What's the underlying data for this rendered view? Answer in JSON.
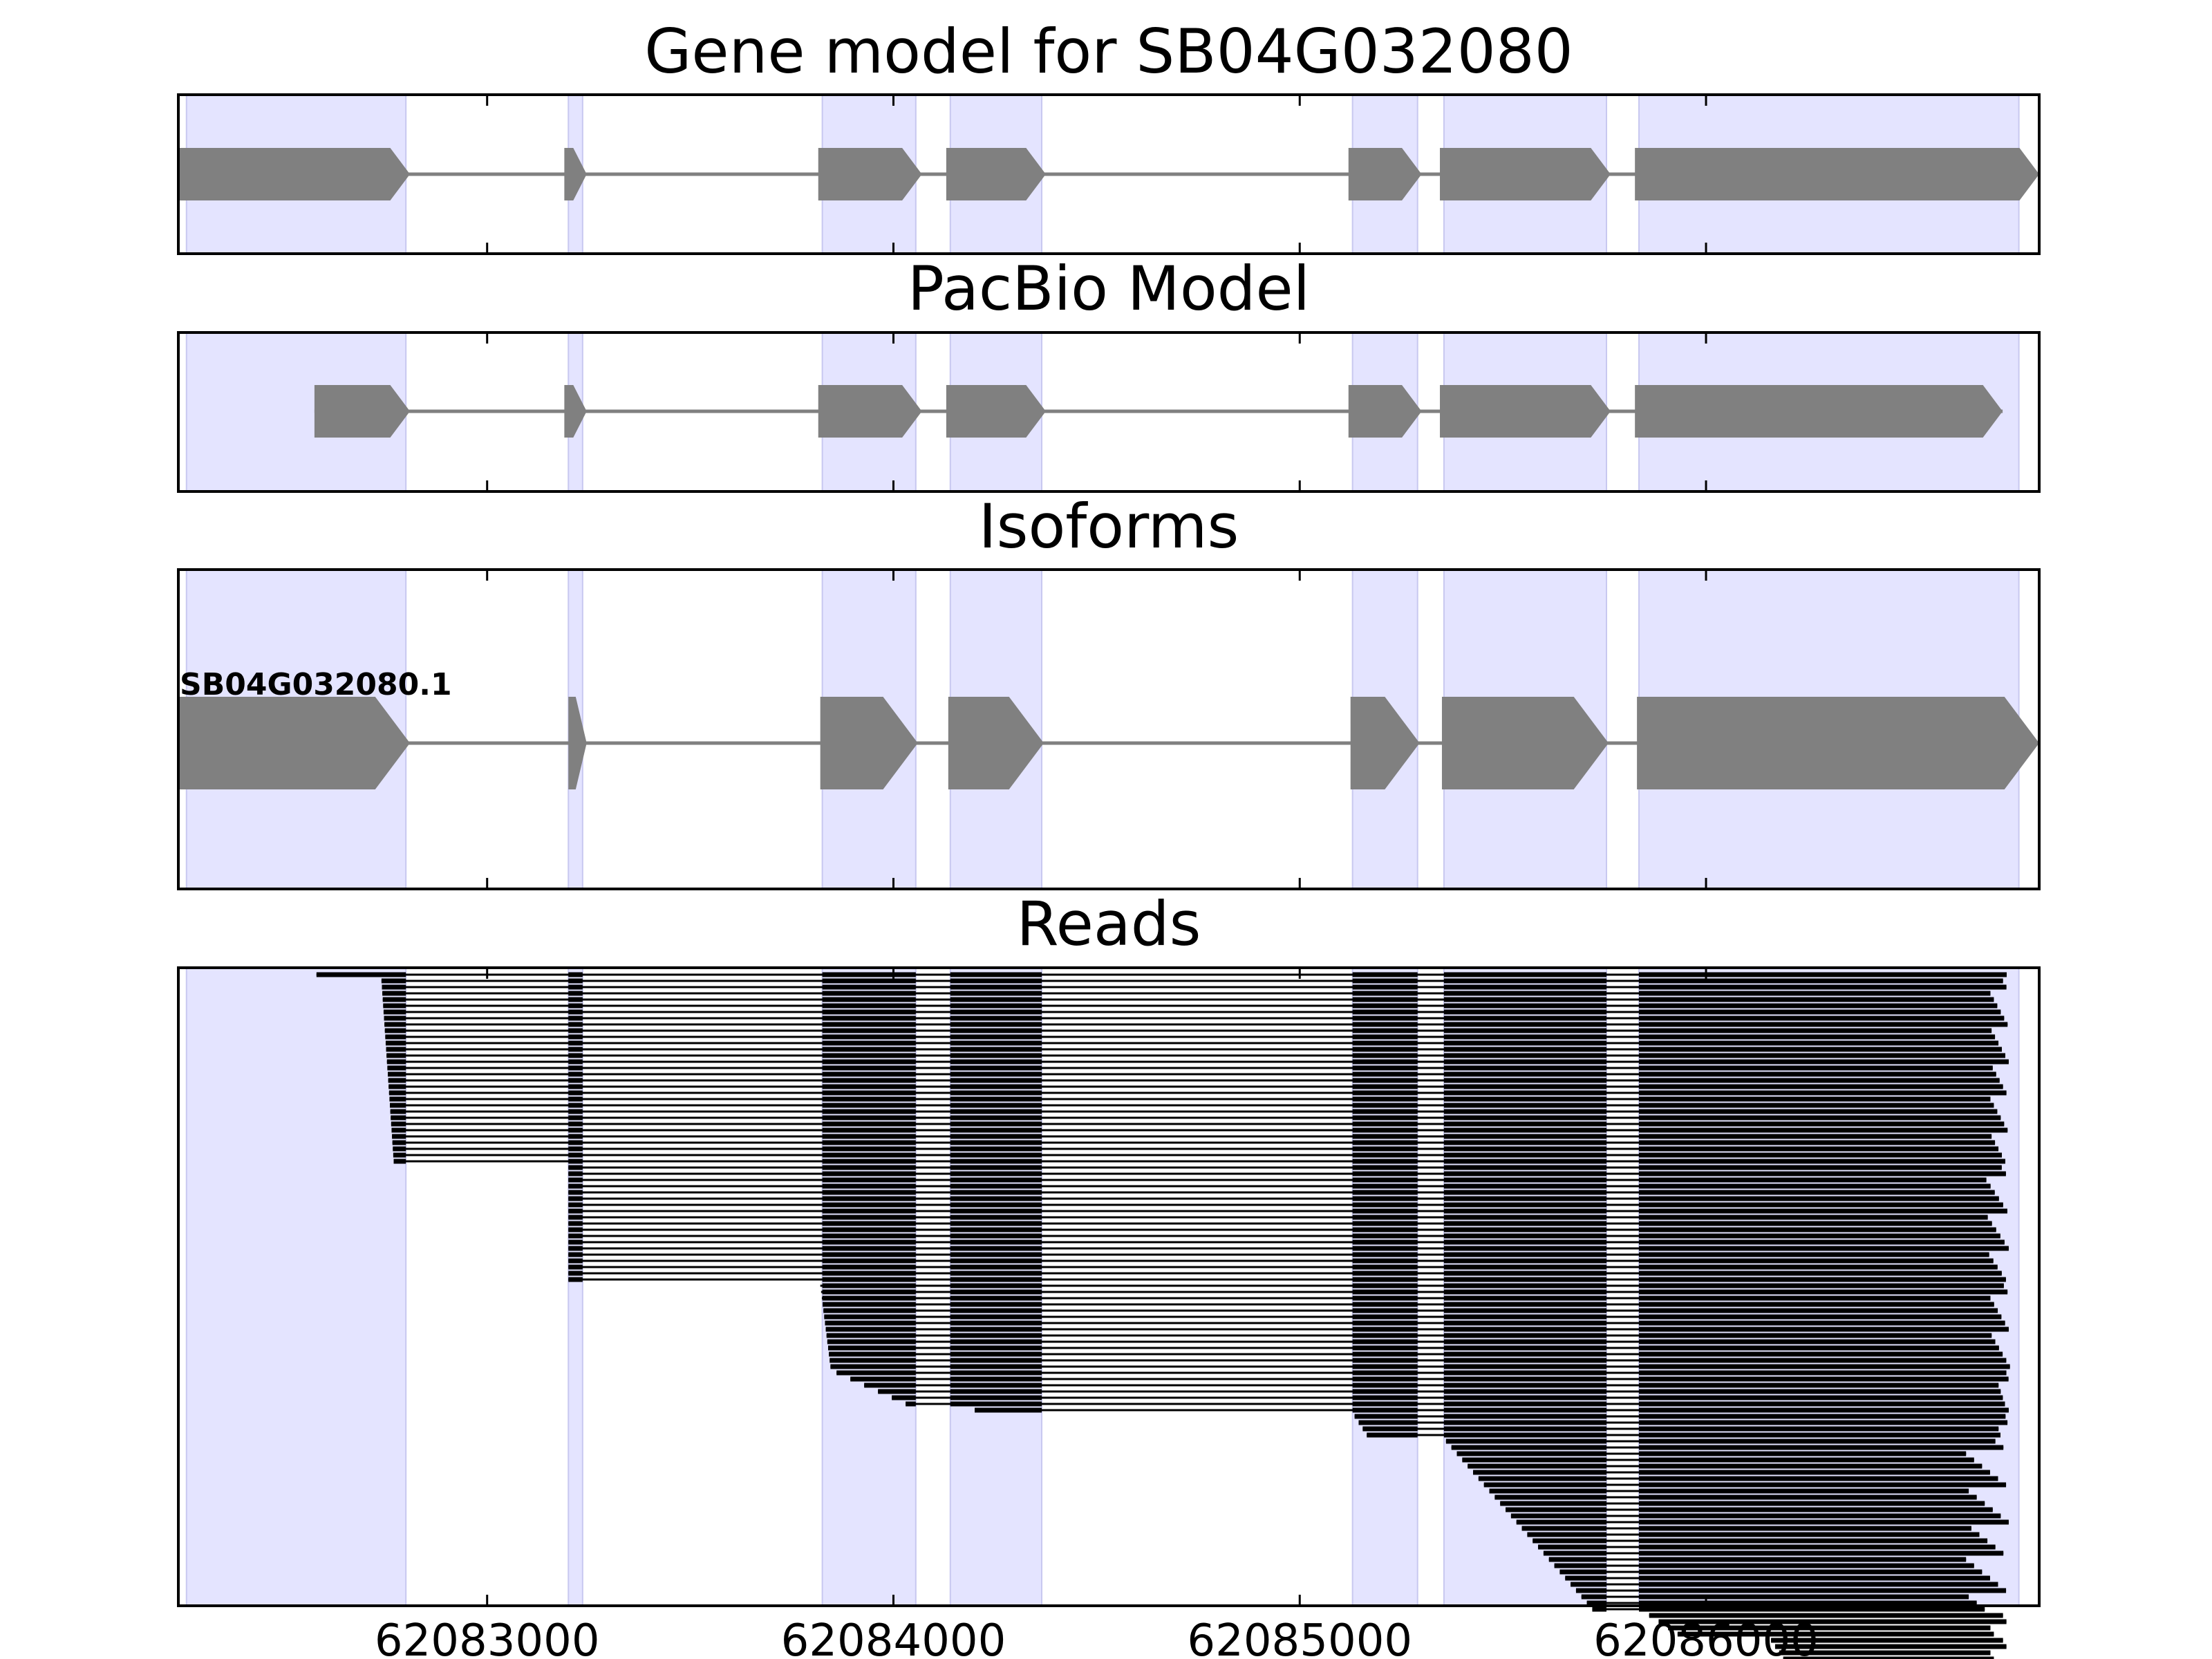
{
  "chart_data": {
    "type": "gene-track",
    "x_range": [
      62082240,
      62086820
    ],
    "x_ticks": [
      62083000,
      62084000,
      62085000,
      62086000
    ],
    "x_tick_labels": [
      "62083000",
      "62084000",
      "62085000",
      "62086000"
    ],
    "exon_regions": [
      [
        62082260,
        62082800
      ],
      [
        62083200,
        62083235
      ],
      [
        62083825,
        62084055
      ],
      [
        62084140,
        62084365
      ],
      [
        62085130,
        62085290
      ],
      [
        62085355,
        62085755
      ],
      [
        62085835,
        62086770
      ]
    ],
    "colors": {
      "highlight": "#e4e4ff",
      "feature": "#808080",
      "read": "#000000"
    },
    "panels": [
      {
        "title": "Gene model for SB04G032080",
        "tracks": [
          {
            "label": "",
            "exons": [
              [
                62082240,
                62082810
              ],
              [
                62083190,
                62083245
              ],
              [
                62083815,
                62084070
              ],
              [
                62084130,
                62084375
              ],
              [
                62085120,
                62085300
              ],
              [
                62085345,
                62085765
              ],
              [
                62085825,
                62086820
              ]
            ]
          }
        ]
      },
      {
        "title": "PacBio Model",
        "tracks": [
          {
            "label": "",
            "exons": [
              [
                62082575,
                62082810
              ],
              [
                62083190,
                62083245
              ],
              [
                62083815,
                62084070
              ],
              [
                62084130,
                62084375
              ],
              [
                62085120,
                62085300
              ],
              [
                62085345,
                62085765
              ],
              [
                62085825,
                62086730
              ]
            ]
          }
        ]
      },
      {
        "title": "Isoforms",
        "tracks": [
          {
            "label": "SB04G032080.1",
            "exons": [
              [
                62082240,
                62082810
              ],
              [
                62083200,
                62083245
              ],
              [
                62083820,
                62084060
              ],
              [
                62084135,
                62084370
              ],
              [
                62085125,
                62085295
              ],
              [
                62085350,
                62085760
              ],
              [
                62085830,
                62086820
              ]
            ]
          }
        ]
      }
    ],
    "reads_panel": {
      "title": "Reads",
      "read_groups": [
        {
          "count": 1,
          "start": 62082580,
          "end": 62086740
        },
        {
          "count": 30,
          "start_from": 62082740,
          "start_to": 62082770,
          "end_min": 62086700,
          "end_max": 62086745
        },
        {
          "count": 19,
          "start_from": 62083200,
          "start_to": 62083200,
          "end_min": 62086690,
          "end_max": 62086745
        },
        {
          "count": 14,
          "start_from": 62083820,
          "start_to": 62083845,
          "end_min": 62086700,
          "end_max": 62086748
        },
        {
          "count": 6,
          "start_from": 62083860,
          "start_to": 62084030,
          "end_min": 62086720,
          "end_max": 62086748
        },
        {
          "count": 1,
          "start": 62084200,
          "end": 62086745
        },
        {
          "count": 4,
          "start_from": 62085135,
          "start_to": 62085165,
          "end_min": 62086720,
          "end_max": 62086745
        },
        {
          "count": 28,
          "start_from": 62085360,
          "start_to": 62085720,
          "end_min": 62086640,
          "end_max": 62086745
        },
        {
          "count": 4,
          "start_from": 62085860,
          "start_to": 62085930,
          "end_min": 62086700,
          "end_max": 62086745
        },
        {
          "count": 6,
          "start_from": 62086160,
          "start_to": 62086210,
          "end_min": 62086700,
          "end_max": 62086745
        }
      ]
    }
  }
}
